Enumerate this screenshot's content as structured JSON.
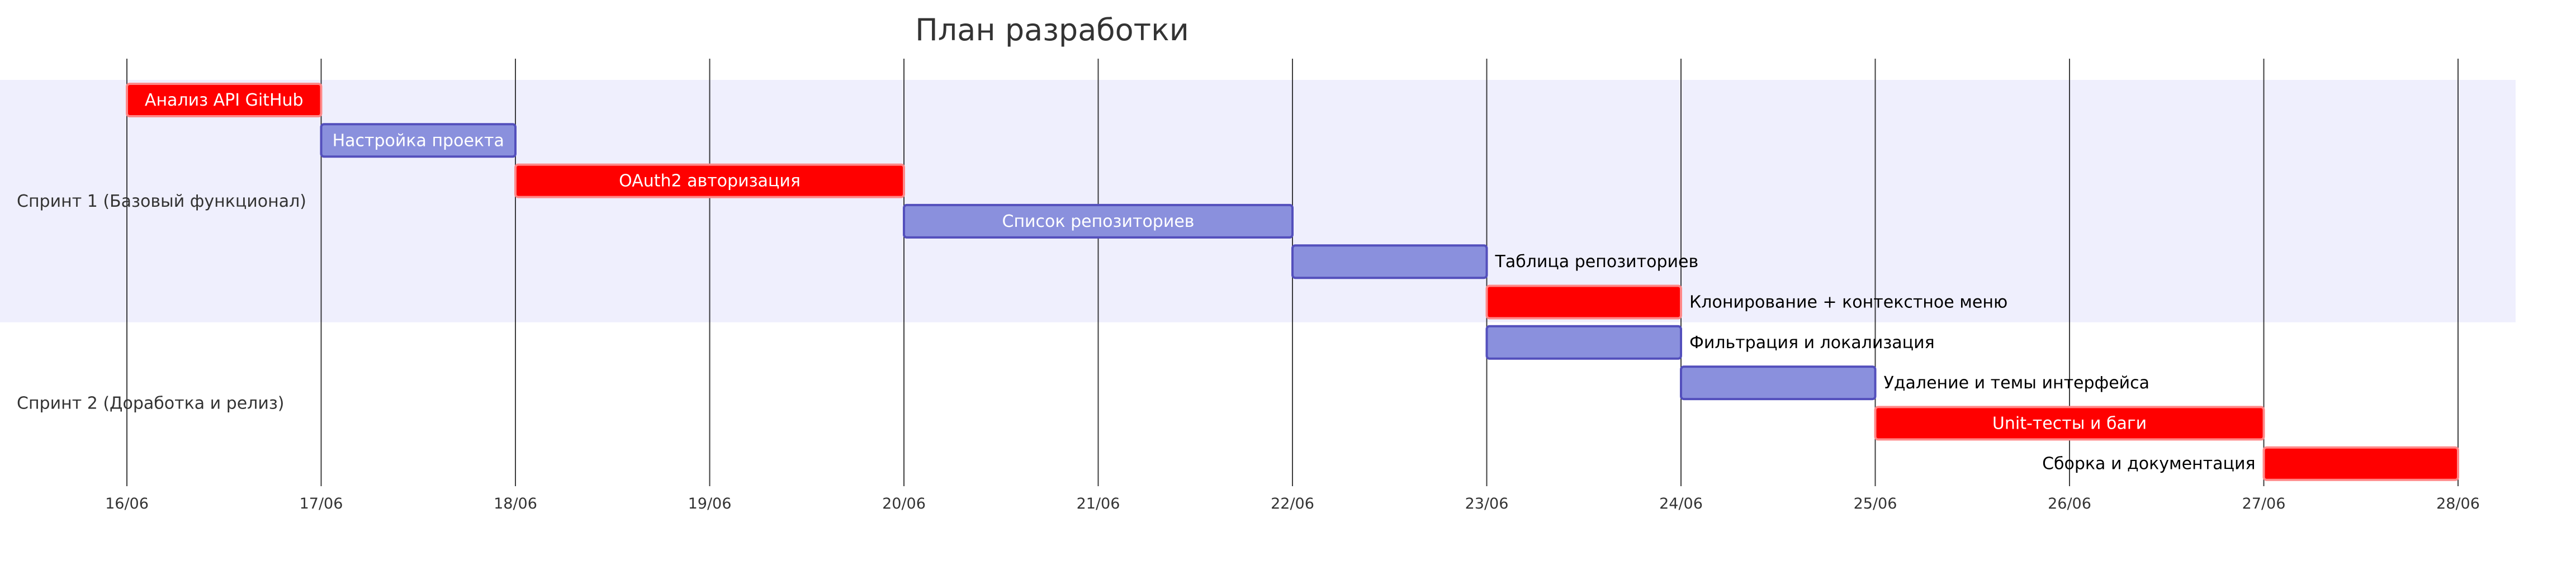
{
  "chart_data": {
    "type": "gantt",
    "title": "План разработки",
    "x_ticks": [
      "16/06",
      "17/06",
      "18/06",
      "19/06",
      "20/06",
      "21/06",
      "22/06",
      "23/06",
      "24/06",
      "25/06",
      "26/06",
      "27/06",
      "28/06"
    ],
    "xlim": [
      "2025-06-16",
      "2025-06-28"
    ],
    "grid": true,
    "colors": {
      "critical": "#ff0000",
      "normal": "#8a90dd",
      "normal_border": "#534fbc",
      "critical_border": "#ff8888",
      "section_band": "#efeffd",
      "grid": "#000000"
    },
    "sections": [
      {
        "name": "Спринт 1 (Базовый функционал)",
        "tasks": [
          {
            "name": "Анализ API GitHub",
            "start": "2025-06-16",
            "end": "2025-06-17",
            "critical": true
          },
          {
            "name": "Настройка проекта",
            "start": "2025-06-17",
            "end": "2025-06-18",
            "critical": false
          },
          {
            "name": "OAuth2 авторизация",
            "start": "2025-06-18",
            "end": "2025-06-20",
            "critical": true
          },
          {
            "name": "Список репозиториев",
            "start": "2025-06-20",
            "end": "2025-06-22",
            "critical": false
          },
          {
            "name": "Таблица репозиториев",
            "start": "2025-06-22",
            "end": "2025-06-23",
            "critical": false
          },
          {
            "name": "Клонирование + контекстное меню",
            "start": "2025-06-23",
            "end": "2025-06-24",
            "critical": true
          }
        ]
      },
      {
        "name": "Спринт 2 (Доработка и релиз)",
        "tasks": [
          {
            "name": "Фильтрация и локализация",
            "start": "2025-06-23",
            "end": "2025-06-24",
            "critical": false
          },
          {
            "name": "Удаление и темы интерфейса",
            "start": "2025-06-24",
            "end": "2025-06-25",
            "critical": false
          },
          {
            "name": "Unit-тесты и баги",
            "start": "2025-06-25",
            "end": "2025-06-27",
            "critical": true
          },
          {
            "name": "Сборка и документация",
            "start": "2025-06-27",
            "end": "2025-06-28",
            "critical": true
          }
        ]
      }
    ]
  }
}
